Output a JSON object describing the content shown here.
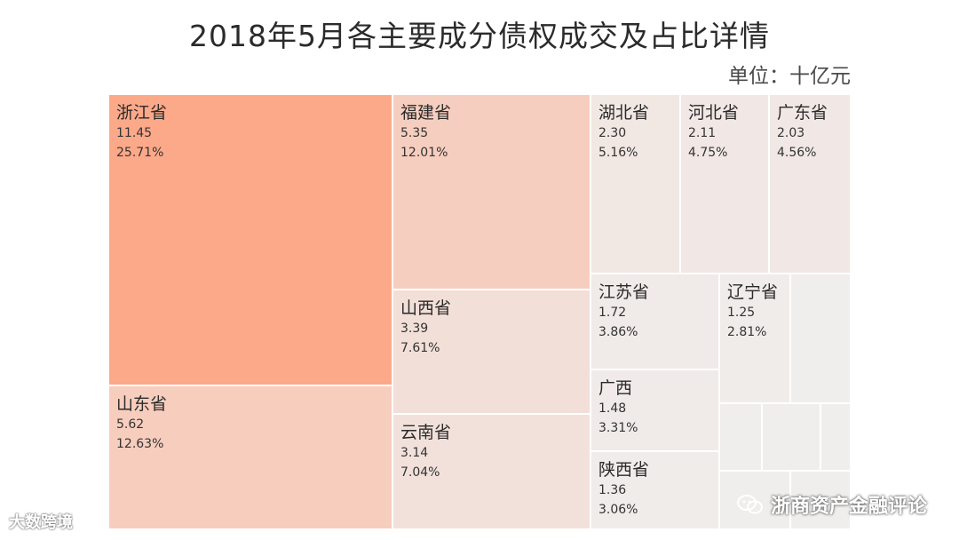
{
  "header": {
    "title": "2018年5月各主要成分债权成交及占比详情",
    "unit": "单位：十亿元"
  },
  "chart_data": {
    "type": "treemap",
    "title": "2018年5月各主要成分债权成交及占比详情",
    "unit": "单位：十亿元",
    "items": [
      {
        "name": "浙江省",
        "value": 11.45,
        "share": "25.71%",
        "color": "#FCA98A"
      },
      {
        "name": "山东省",
        "value": 5.62,
        "share": "12.63%",
        "color": "#F7CDBE"
      },
      {
        "name": "福建省",
        "value": 5.35,
        "share": "12.01%",
        "color": "#F6CEBF"
      },
      {
        "name": "山西省",
        "value": 3.39,
        "share": "7.61%",
        "color": "#F2DFD8"
      },
      {
        "name": "云南省",
        "value": 3.14,
        "share": "7.04%",
        "color": "#F2E1DB"
      },
      {
        "name": "湖北省",
        "value": 2.3,
        "share": "5.16%",
        "color": "#F1E7E3"
      },
      {
        "name": "河北省",
        "value": 2.11,
        "share": "4.75%",
        "color": "#F1E8E5"
      },
      {
        "name": "广东省",
        "value": 2.03,
        "share": "4.56%",
        "color": "#F1E8E5"
      },
      {
        "name": "江苏省",
        "value": 1.72,
        "share": "3.86%",
        "color": "#F0EAE8"
      },
      {
        "name": "辽宁省",
        "value": 1.25,
        "share": "2.81%",
        "color": "#F0ECEA"
      },
      {
        "name": "广西",
        "value": 1.48,
        "share": "3.31%",
        "color": "#F0EBE9"
      },
      {
        "name": "陕西省",
        "value": 1.36,
        "share": "3.06%",
        "color": "#F0ECEA"
      },
      {
        "name": "",
        "value": null,
        "share": "",
        "color": "#F0EEED"
      },
      {
        "name": "",
        "value": null,
        "share": "",
        "color": "#F0EEED"
      },
      {
        "name": "",
        "value": null,
        "share": "",
        "color": "#F0EEED"
      },
      {
        "name": "",
        "value": null,
        "share": "",
        "color": "#F0EEED"
      },
      {
        "name": "",
        "value": null,
        "share": "",
        "color": "#F0EEED"
      },
      {
        "name": "",
        "value": null,
        "share": "",
        "color": "#F0EEED"
      }
    ]
  },
  "watermarks": {
    "left": "大数跨境",
    "right": "浙商资产金融评论"
  }
}
